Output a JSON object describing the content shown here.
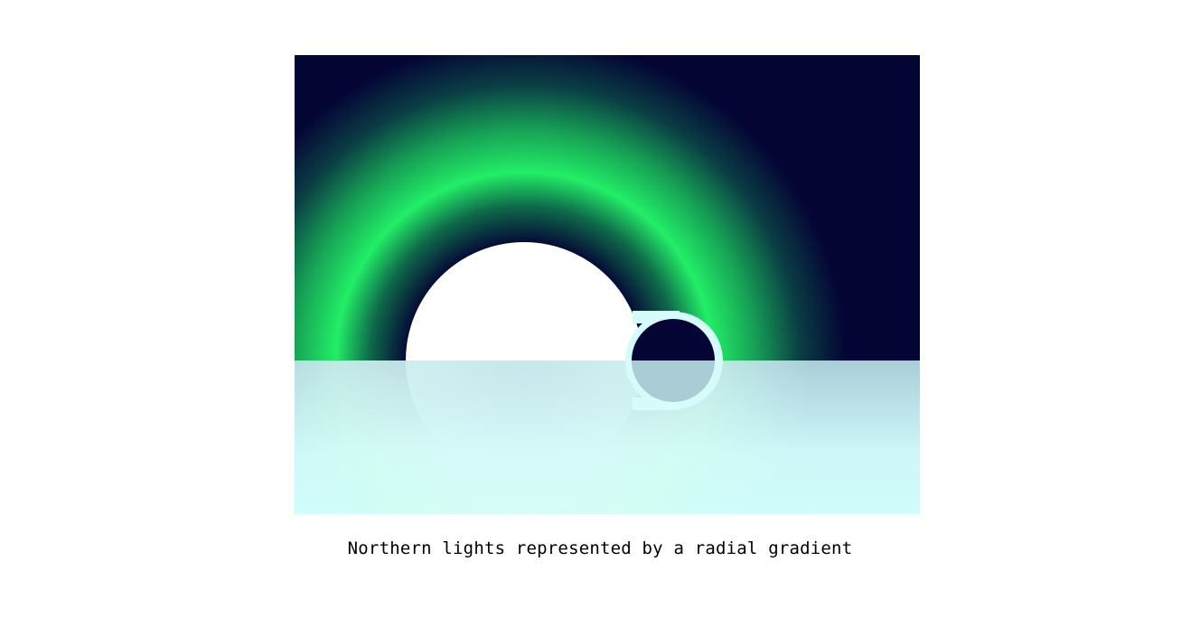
{
  "caption": "Northern lights represented by a radial gradient",
  "colors": {
    "sky": "#040535",
    "aurora": "#22ee66",
    "water": "#cffdfb",
    "moon": "#ffffff",
    "ring_outline": "#d6fbfb"
  },
  "icons": {
    "moon": "moon-icon",
    "ring": "ring-icon"
  }
}
